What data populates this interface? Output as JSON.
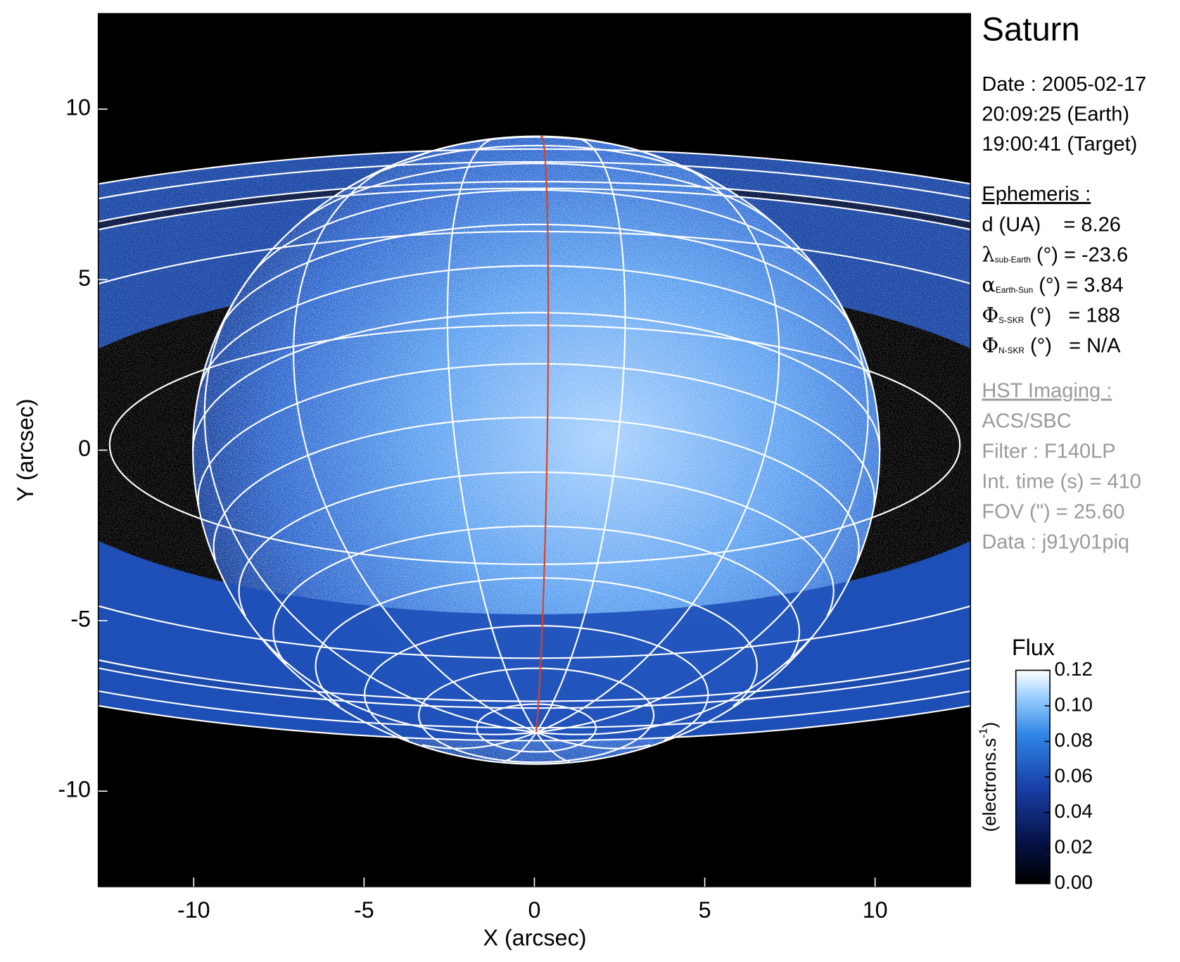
{
  "chart_data": {
    "type": "image",
    "title": "Saturn",
    "info": [
      "Date : 2005-02-17",
      "20:09:25 (Earth)",
      "19:00:41 (Target)"
    ],
    "ephemeris": {
      "heading": "Ephemeris :",
      "rows": [
        {
          "text": "d (UA)    = 8.26"
        },
        {
          "symbol": "λ",
          "subscript": "sub-Earth",
          "text": " (°) = -23.6"
        },
        {
          "symbol": "α",
          "subscript": "Earth-Sun",
          "text": " (°) = 3.84"
        },
        {
          "symbol": "Φ",
          "subscript": "S-SKR",
          "text": " (°)   = 188"
        },
        {
          "symbol": "Φ",
          "subscript": "N-SKR",
          "text": " (°)   = N/A"
        }
      ]
    },
    "imaging": {
      "heading": "HST Imaging :",
      "rows": [
        "ACS/SBC",
        "Filter : F140LP",
        "Int. time (s) = 410",
        "FOV (\") = 25.60",
        "Data : j91y01piq"
      ]
    },
    "xlabel": "X (arcsec)",
    "ylabel": "Y (arcsec)",
    "xlim": [
      -12.8,
      12.8
    ],
    "ylim": [
      -12.8,
      12.8
    ],
    "xticks": [
      -10,
      -5,
      0,
      5,
      10
    ],
    "yticks": [
      -10,
      -5,
      0,
      5,
      10
    ],
    "colorbar": {
      "title": "Flux",
      "label": "(electrons.s",
      "label_superscript": "-1",
      "label_end": ")",
      "lim": [
        0,
        0.12
      ],
      "ticks": [
        {
          "value": 0,
          "label": "0.00"
        },
        0.02,
        0.04,
        0.06,
        0.08,
        {
          "value": 0.1,
          "label": "0.10"
        },
        0.12
      ]
    }
  }
}
